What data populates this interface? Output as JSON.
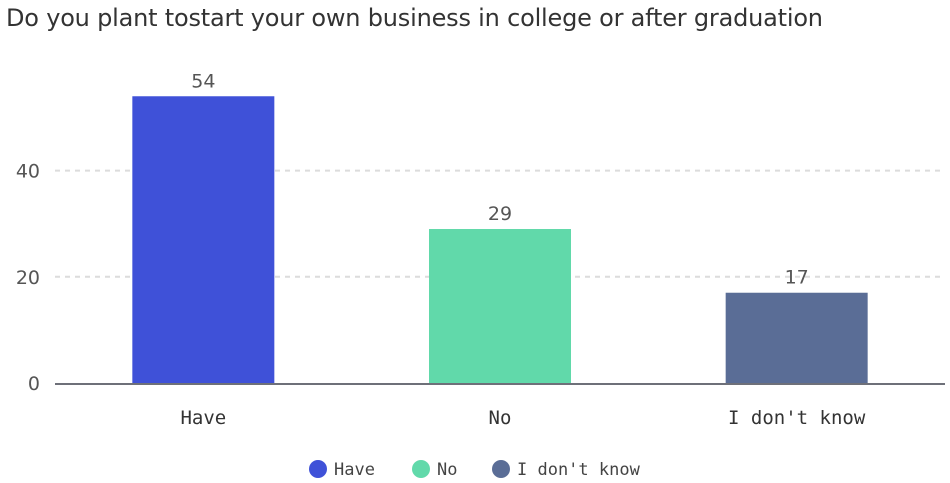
{
  "chart_data": {
    "type": "bar",
    "title": "Do you plant tostart your own business in college or after graduation",
    "categories": [
      "Have",
      "No",
      "I don't know"
    ],
    "values": [
      54,
      29,
      17
    ],
    "colors": [
      "#3f51d8",
      "#61d9aa",
      "#5a6d96"
    ],
    "yticks": [
      0,
      20,
      40
    ],
    "ylim": [
      0,
      60
    ],
    "grid": "dashed horizontal",
    "legend": {
      "placement": "bottom-center",
      "entries": [
        "Have",
        "No",
        "I don't know"
      ]
    }
  }
}
